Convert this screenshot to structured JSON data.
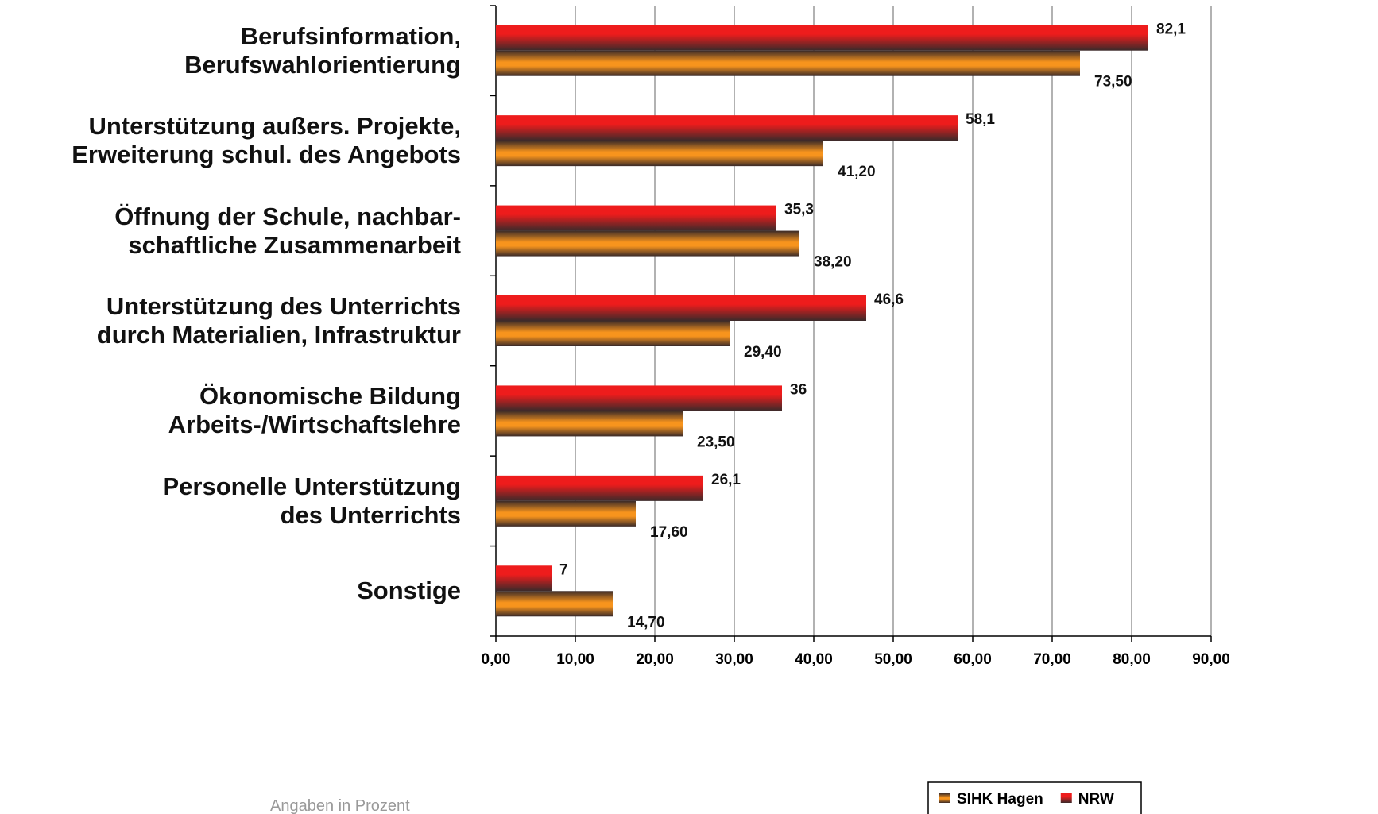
{
  "chart_data": {
    "type": "hbar",
    "categories": [
      "Berufsinformation,\nBerufswahlorientierung",
      "Unterstützung außers. Projekte,\nErweiterung schul. des Angebots",
      "Öffnung der Schule, nachbar-\nschaftliche Zusammenarbeit",
      "Unterstützung des Unterrichts\ndurch Materialien, Infrastruktur",
      "Ökonomische Bildung\nArbeits-/Wirtschaftslehre",
      "Personelle Unterstützung\ndes Unterrichts",
      "Sonstige"
    ],
    "series": [
      {
        "name": "SIHK Hagen",
        "color": "#f7941d",
        "values": [
          73.5,
          41.2,
          38.2,
          29.4,
          23.5,
          17.6,
          14.7
        ],
        "value_labels": [
          "73,50",
          "41,20",
          "38,20",
          "29,40",
          "23,50",
          "17,60",
          "14,70"
        ]
      },
      {
        "name": "NRW",
        "color": "#ee1c1c",
        "values": [
          82.1,
          58.1,
          35.3,
          46.6,
          36,
          26.1,
          7
        ],
        "value_labels": [
          "82,1",
          "58,1",
          "35,3",
          "46,6",
          "36",
          "26,1",
          "7"
        ]
      }
    ],
    "xlim": [
      0,
      90
    ],
    "xticks": [
      {
        "value": 0,
        "label": "0,00"
      },
      {
        "value": 10,
        "label": "10,00"
      },
      {
        "value": 20,
        "label": "20,00"
      },
      {
        "value": 30,
        "label": "30,00"
      },
      {
        "value": 40,
        "label": "40,00"
      },
      {
        "value": 50,
        "label": "50,00"
      },
      {
        "value": 60,
        "label": "60,00"
      },
      {
        "value": 70,
        "label": "70,00"
      },
      {
        "value": 80,
        "label": "80,00"
      },
      {
        "value": 90,
        "label": "90,00"
      }
    ],
    "grid": true,
    "note": "Angaben in Prozent"
  }
}
